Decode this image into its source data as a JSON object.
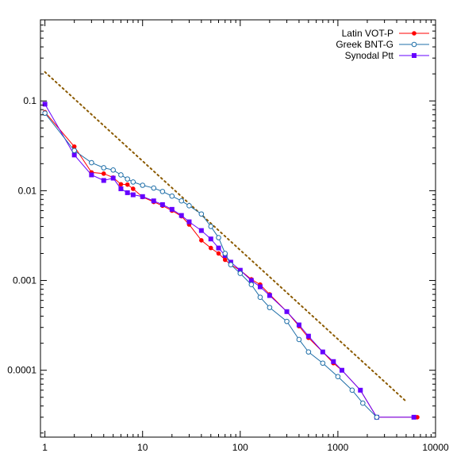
{
  "chart_data": {
    "type": "line",
    "x_scale": "log",
    "y_scale": "log",
    "xlim": [
      0.9,
      10000
    ],
    "ylim": [
      1.8e-05,
      0.8
    ],
    "x_ticks": [
      {
        "value": 1,
        "label": "1"
      },
      {
        "value": 10,
        "label": "10"
      },
      {
        "value": 100,
        "label": "100"
      },
      {
        "value": 1000,
        "label": "1000"
      },
      {
        "value": 10000,
        "label": "10000"
      }
    ],
    "y_ticks": [
      {
        "value": 0.1,
        "label": "0.1"
      },
      {
        "value": 0.01,
        "label": "0.01"
      },
      {
        "value": 0.001,
        "label": "0.001"
      },
      {
        "value": 0.0001,
        "label": "0.0001"
      }
    ],
    "grid": false,
    "legend_position": "top-right",
    "series": [
      {
        "name": "Latin VOT-P",
        "color": "#ff0000",
        "marker": "filled-circle",
        "x": [
          1,
          2,
          3,
          4,
          5,
          6,
          7,
          8,
          10,
          13,
          16,
          20,
          25,
          30,
          40,
          50,
          60,
          70,
          80,
          100,
          130,
          160,
          200,
          300,
          400,
          500,
          700,
          900,
          1100,
          1700,
          2500,
          6500
        ],
        "y": [
          0.075,
          0.031,
          0.016,
          0.0155,
          0.014,
          0.0118,
          0.0117,
          0.0105,
          0.0085,
          0.0075,
          0.0068,
          0.006,
          0.0052,
          0.0042,
          0.0028,
          0.0023,
          0.002,
          0.0017,
          0.0015,
          0.0013,
          0.00103,
          0.0009,
          0.0007,
          0.00045,
          0.00031,
          0.00023,
          0.00016,
          0.00012,
          0.0001,
          6e-05,
          3e-05,
          3e-05
        ]
      },
      {
        "name": "Greek BNT-G",
        "color": "#1f6fa8",
        "marker": "open-circle",
        "x": [
          1,
          2,
          3,
          4,
          5,
          6,
          7,
          8,
          10,
          13,
          16,
          20,
          25,
          30,
          40,
          50,
          60,
          70,
          80,
          100,
          130,
          160,
          200,
          300,
          400,
          500,
          700,
          1000,
          1400,
          1800,
          2500
        ],
        "y": [
          0.073,
          0.028,
          0.0205,
          0.018,
          0.017,
          0.015,
          0.0135,
          0.0125,
          0.0115,
          0.0107,
          0.0098,
          0.0087,
          0.0077,
          0.0068,
          0.0055,
          0.004,
          0.003,
          0.002,
          0.0015,
          0.0012,
          0.0009,
          0.00065,
          0.0005,
          0.00035,
          0.00022,
          0.00016,
          0.00012,
          8.5e-05,
          6e-05,
          4.3e-05,
          3e-05
        ]
      },
      {
        "name": "Synodal Ptt",
        "color": "#6600ff",
        "marker": "filled-square",
        "x": [
          1,
          2,
          3,
          4,
          5,
          6,
          7,
          8,
          10,
          13,
          16,
          20,
          25,
          30,
          40,
          50,
          60,
          70,
          80,
          100,
          130,
          160,
          200,
          300,
          400,
          500,
          700,
          900,
          1100,
          1700,
          2500,
          6000
        ],
        "y": [
          0.092,
          0.025,
          0.015,
          0.013,
          0.0138,
          0.0105,
          0.0095,
          0.009,
          0.0086,
          0.0077,
          0.007,
          0.0062,
          0.0053,
          0.0045,
          0.0036,
          0.0029,
          0.0023,
          0.0019,
          0.0016,
          0.0013,
          0.001,
          0.00085,
          0.00068,
          0.00045,
          0.00032,
          0.00024,
          0.00016,
          0.000125,
          0.0001,
          6e-05,
          3e-05,
          3e-05
        ]
      }
    ],
    "reference_line": {
      "color": "#8b5a00",
      "style": "dotted",
      "x": [
        1,
        5000
      ],
      "y": [
        0.21,
        4.5e-05
      ]
    }
  }
}
